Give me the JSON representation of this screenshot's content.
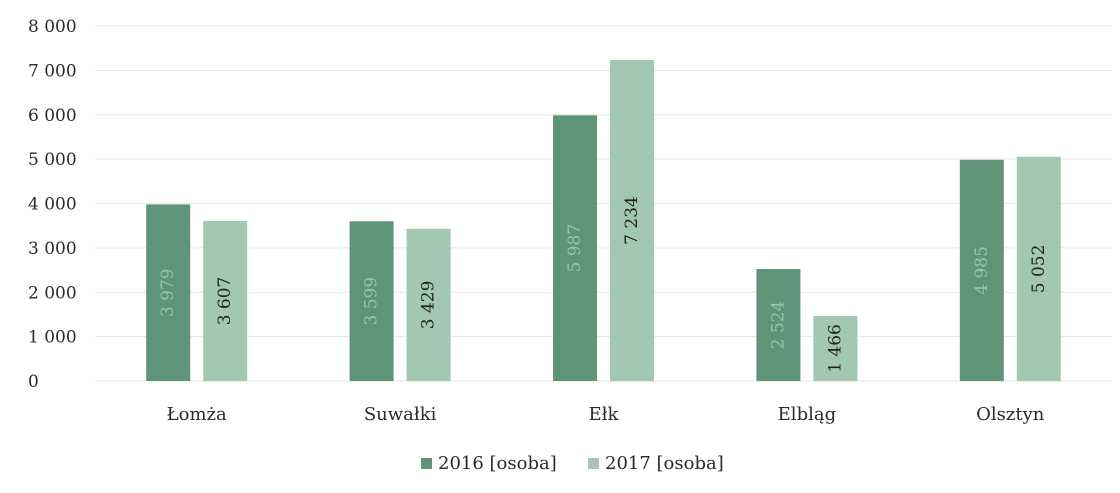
{
  "chart_data": {
    "type": "bar",
    "title": "",
    "xlabel": "",
    "ylabel": "",
    "categories": [
      "Łomża",
      "Suwałki",
      "Ełk",
      "Elbląg",
      "Olsztyn"
    ],
    "series": [
      {
        "name": "2016 [osoba]",
        "color": "#5f9478",
        "label_color": "#9bc2ac",
        "values": [
          3979,
          3599,
          5987,
          2524,
          4985
        ],
        "value_labels": [
          "3 979",
          "3 599",
          "5 987",
          "2 524",
          "4 985"
        ]
      },
      {
        "name": "2017 [osoba]",
        "color": "#a3c8b2",
        "label_color": "#222222",
        "values": [
          3607,
          3429,
          7234,
          1466,
          5052
        ],
        "value_labels": [
          "3 607",
          "3 429",
          "7 234",
          "1 466",
          "5 052"
        ]
      }
    ],
    "ylim": [
      0,
      8000
    ],
    "yticks": [
      0,
      1000,
      2000,
      3000,
      4000,
      5000,
      6000,
      7000,
      8000
    ],
    "ytick_labels": [
      "0",
      "1 000",
      "2 000",
      "3 000",
      "4 000",
      "5 000",
      "6 000",
      "7 000",
      "8 000"
    ],
    "grid": true,
    "legend_position": "bottom"
  }
}
